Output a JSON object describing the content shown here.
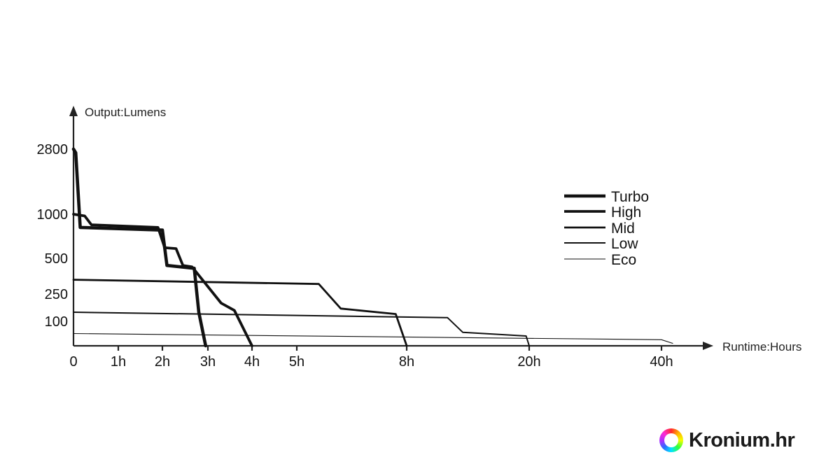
{
  "chart_data": {
    "type": "line",
    "ylabel": "Output:Lumens",
    "xlabel": "Runtime:Hours",
    "x_ticks": [
      "0",
      "1h",
      "2h",
      "3h",
      "4h",
      "5h",
      "8h",
      "20h",
      "40h"
    ],
    "y_ticks": [
      "100",
      "250",
      "500",
      "1000",
      "2800"
    ],
    "x_scale": "non-linear (piecewise by tick labels)",
    "y_scale": "non-linear (piecewise by tick labels)",
    "legend_position": "right",
    "grid": false,
    "series": [
      {
        "name": "Turbo",
        "style": "heaviest",
        "points": [
          [
            0,
            2800
          ],
          [
            0.05,
            2700
          ],
          [
            0.15,
            850
          ],
          [
            2.0,
            820
          ],
          [
            2.1,
            450
          ],
          [
            2.7,
            430
          ],
          [
            2.8,
            150
          ],
          [
            2.95,
            0
          ]
        ]
      },
      {
        "name": "High",
        "style": "heavy",
        "points": [
          [
            0,
            1000
          ],
          [
            0.25,
            980
          ],
          [
            0.4,
            880
          ],
          [
            1.9,
            850
          ],
          [
            2.05,
            620
          ],
          [
            2.3,
            610
          ],
          [
            2.45,
            450
          ],
          [
            2.65,
            440
          ],
          [
            3.3,
            200
          ],
          [
            3.6,
            160
          ],
          [
            4.0,
            0
          ]
        ]
      },
      {
        "name": "Mid",
        "style": "medium",
        "points": [
          [
            0,
            350
          ],
          [
            5.6,
            320
          ],
          [
            6.2,
            170
          ],
          [
            7.7,
            140
          ],
          [
            8.0,
            0
          ]
        ]
      },
      {
        "name": "Low",
        "style": "light",
        "points": [
          [
            0,
            150
          ],
          [
            12,
            120
          ],
          [
            13.5,
            55
          ],
          [
            19.7,
            40
          ],
          [
            20,
            0
          ]
        ]
      },
      {
        "name": "Eco",
        "style": "thinnest",
        "points": [
          [
            0,
            50
          ],
          [
            40,
            25
          ],
          [
            41.5,
            10
          ]
        ]
      }
    ]
  },
  "brand": {
    "text": "Kronium.hr",
    "logo_icon": "rainbow-ring-icon"
  }
}
